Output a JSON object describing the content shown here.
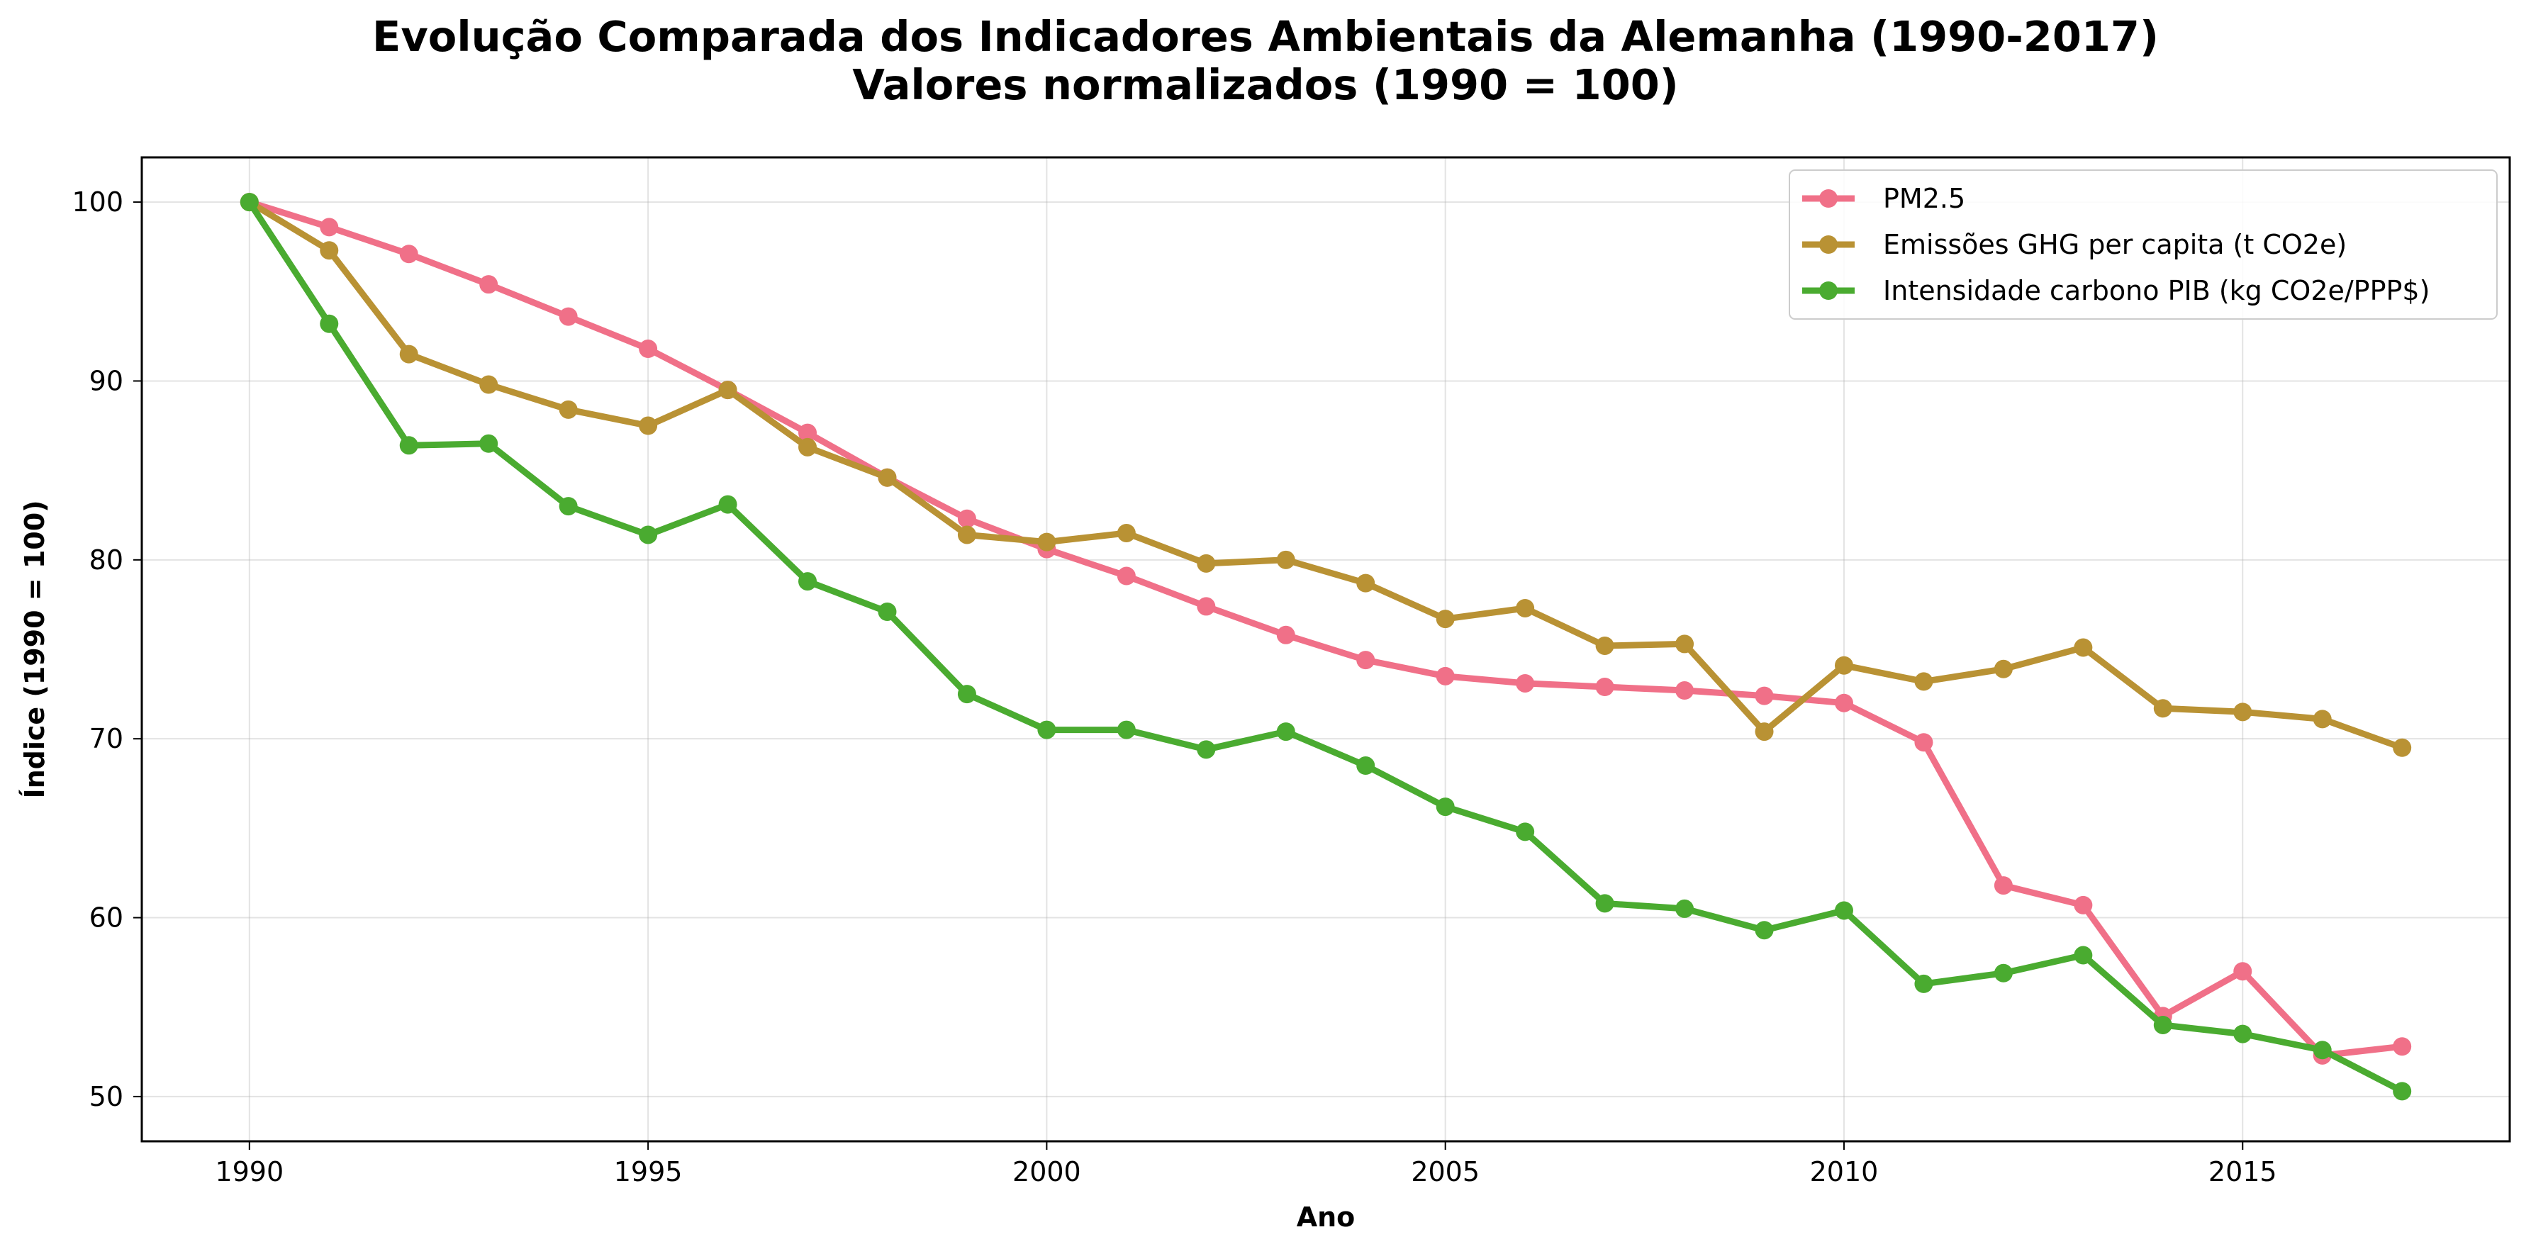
{
  "chart_data": {
    "type": "line",
    "title": "Evolução Comparada dos Indicadores Ambientais da Alemanha (1990-2017)",
    "subtitle": "Valores normalizados (1990 = 100)",
    "xlabel": "Ano",
    "ylabel": "Índice (1990 = 100)",
    "xlim": [
      1988.65,
      2018.35
    ],
    "ylim": [
      47.5,
      102.5
    ],
    "xticks": [
      1990,
      1995,
      2000,
      2005,
      2010,
      2015
    ],
    "yticks": [
      50,
      60,
      70,
      80,
      90,
      100
    ],
    "grid": true,
    "legend_position": "top-right",
    "x": [
      1990,
      1991,
      1992,
      1993,
      1994,
      1995,
      1996,
      1997,
      1998,
      1999,
      2000,
      2001,
      2002,
      2003,
      2004,
      2005,
      2006,
      2007,
      2008,
      2009,
      2010,
      2011,
      2012,
      2013,
      2014,
      2015,
      2016,
      2017
    ],
    "series": [
      {
        "name": "PM2.5",
        "color": "#f07088",
        "values": [
          100,
          98.6,
          97.1,
          95.4,
          93.6,
          91.8,
          89.5,
          87.1,
          84.6,
          82.3,
          80.6,
          79.1,
          77.4,
          75.8,
          74.4,
          73.5,
          73.1,
          72.9,
          72.7,
          72.4,
          72.0,
          69.8,
          61.8,
          60.7,
          54.5,
          57.0,
          52.3,
          52.8
        ]
      },
      {
        "name": "Emissões GHG per capita (t CO2e)",
        "color": "#b99234",
        "values": [
          100,
          97.3,
          91.5,
          89.8,
          88.4,
          87.5,
          89.5,
          86.3,
          84.6,
          81.4,
          81.0,
          81.5,
          79.8,
          80.0,
          78.7,
          76.7,
          77.3,
          75.2,
          75.3,
          70.4,
          74.1,
          73.2,
          73.9,
          75.1,
          71.7,
          71.5,
          71.1,
          69.5
        ]
      },
      {
        "name": "Intensidade carbono PIB (kg CO2e/PPP$)",
        "color": "#4aab30",
        "values": [
          100,
          93.2,
          86.4,
          86.5,
          83.0,
          81.4,
          83.1,
          78.8,
          77.1,
          72.5,
          70.5,
          70.5,
          69.4,
          70.4,
          68.5,
          66.2,
          64.8,
          60.8,
          60.5,
          59.3,
          60.4,
          56.3,
          56.9,
          57.9,
          54.0,
          53.5,
          52.6,
          50.3
        ]
      }
    ]
  }
}
